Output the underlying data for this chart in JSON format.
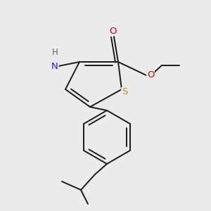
{
  "bg_color": "#ebebeb",
  "bond_color": "#1a1a1a",
  "bond_width": 1.4,
  "S_color": "#b8960c",
  "N_color": "#2020cc",
  "O_color": "#cc0000",
  "H_color": "#606060",
  "font_size_atom": 9.5,
  "font_size_h": 8.5,
  "figsize": [
    3.0,
    3.0
  ],
  "dpi": 100,
  "xlim": [
    0,
    300
  ],
  "ylim": [
    0,
    300
  ]
}
